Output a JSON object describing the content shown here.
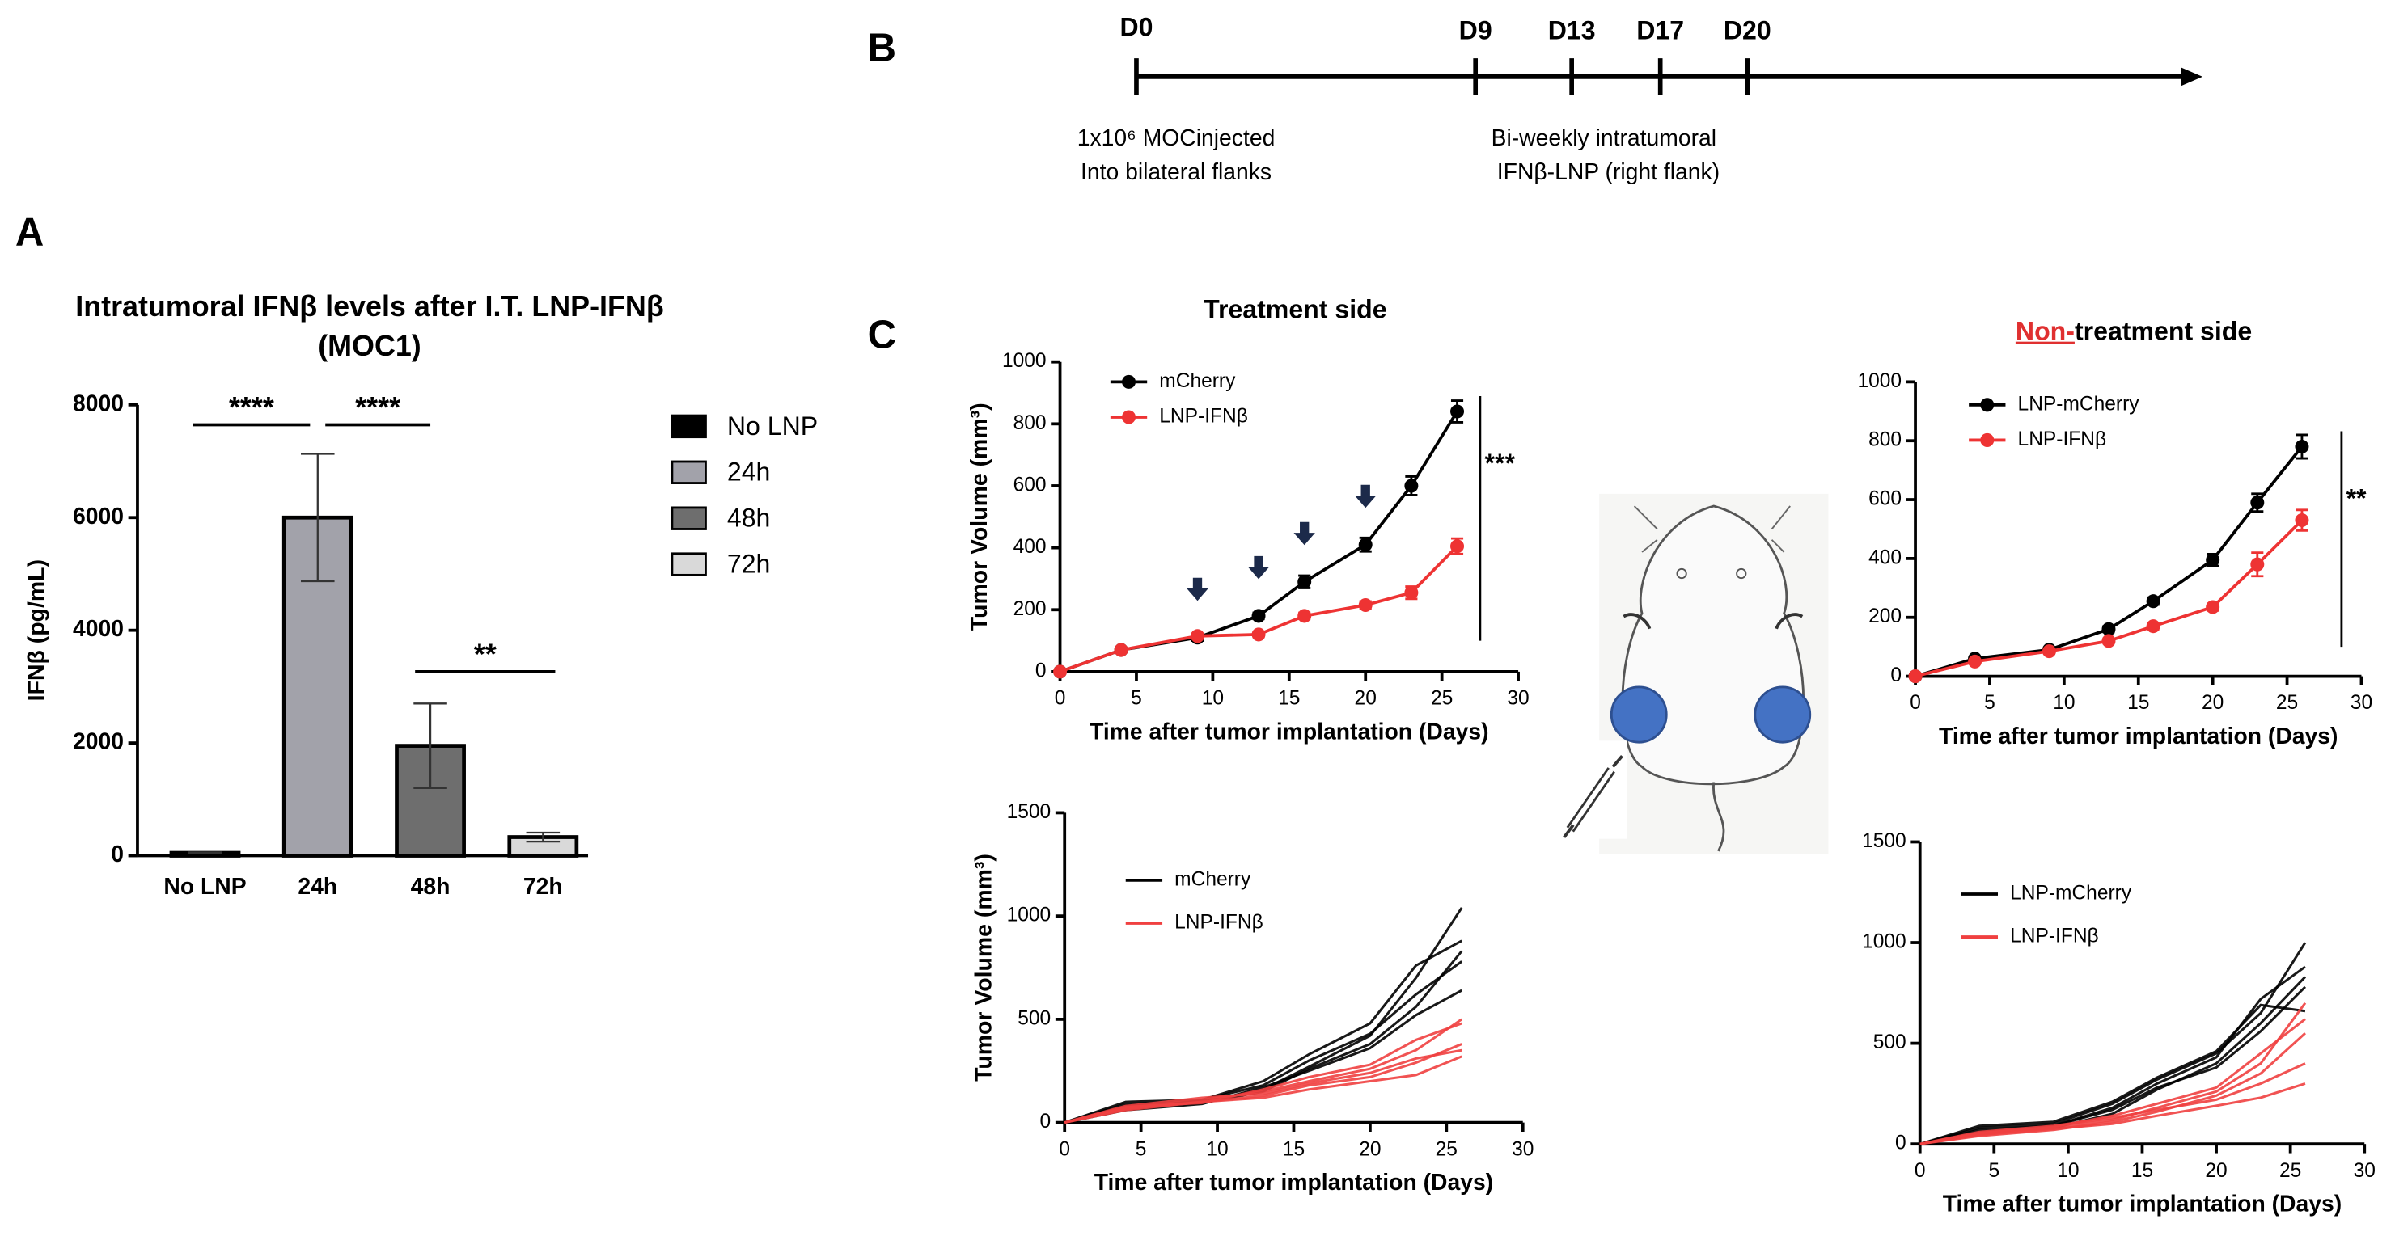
{
  "panel_labels": [
    "A",
    "B",
    "C"
  ],
  "timeline": {
    "days": [
      "D0",
      "D9",
      "D13",
      "D17",
      "D20"
    ],
    "note_left": [
      "1x10⁶ MOCinjected",
      "Into bilateral  flanks"
    ],
    "note_right": [
      "Bi-weekly  intratumoral",
      "IFNβ-LNP (right flank)"
    ]
  },
  "chart_data": [
    {
      "type": "bar",
      "title": "Intratumoral  IFNβ levels after I.T. LNP-IFNβ",
      "subtitle": "(MOC1)",
      "ylabel": "IFNβ  (pg/mL)",
      "categories": [
        "No LNP",
        "24h",
        "48h",
        "72h"
      ],
      "values": [
        50,
        6000,
        1950,
        330
      ],
      "errors": [
        10,
        1130,
        750,
        80
      ],
      "colors": [
        "#000000",
        "#a2a2aa",
        "#6e6e6e",
        "#d9d9d9"
      ],
      "ylim": [
        0,
        8000
      ],
      "yticks": [
        0,
        2000,
        4000,
        6000,
        8000
      ],
      "annotations": [
        "****",
        "****",
        "**"
      ],
      "legend": "right"
    },
    {
      "type": "line",
      "title": "Treatment side",
      "xlabel": "Time after tumor implantation (Days)",
      "ylabel": "Tumor Volume (mm³)",
      "x": [
        0,
        4,
        9,
        13,
        16,
        20,
        23,
        26
      ],
      "series": [
        {
          "name": "mCherry",
          "color": "#000000",
          "values": [
            0,
            70,
            110,
            180,
            290,
            410,
            600,
            840
          ],
          "errors": [
            0,
            8,
            10,
            10,
            20,
            22,
            30,
            35
          ]
        },
        {
          "name": "LNP-IFNβ",
          "color": "#ee3333",
          "values": [
            0,
            70,
            115,
            120,
            180,
            215,
            255,
            405
          ],
          "errors": [
            0,
            8,
            8,
            8,
            10,
            12,
            20,
            25
          ]
        }
      ],
      "xlim": [
        0,
        30
      ],
      "xticks": [
        0,
        5,
        10,
        15,
        20,
        25,
        30
      ],
      "ylim": [
        0,
        1000
      ],
      "yticks": [
        0,
        200,
        400,
        600,
        800,
        1000
      ],
      "annotation": "***"
    },
    {
      "type": "line",
      "title": [
        "Non-",
        "treatment side"
      ],
      "xlabel": "Time after tumor implantation (Days)",
      "x": [
        0,
        4,
        9,
        13,
        16,
        20,
        23,
        26
      ],
      "series": [
        {
          "name": "LNP-mCherry",
          "color": "#000000",
          "values": [
            0,
            60,
            90,
            160,
            255,
            395,
            590,
            780
          ],
          "errors": [
            0,
            6,
            8,
            10,
            12,
            20,
            30,
            40
          ]
        },
        {
          "name": "LNP-IFNβ",
          "color": "#ee3333",
          "values": [
            0,
            50,
            85,
            120,
            170,
            235,
            380,
            530
          ],
          "errors": [
            0,
            6,
            8,
            8,
            10,
            12,
            40,
            35
          ]
        }
      ],
      "xlim": [
        0,
        30
      ],
      "xticks": [
        0,
        5,
        10,
        15,
        20,
        25,
        30
      ],
      "ylim": [
        0,
        1000
      ],
      "yticks": [
        0,
        200,
        400,
        600,
        800,
        1000
      ],
      "annotation": "**"
    },
    {
      "type": "line",
      "xlabel": "Time after tumor implantation (Days)",
      "ylabel": "Tumor Volume (mm³)",
      "x": [
        0,
        4,
        9,
        13,
        16,
        20,
        23,
        26
      ],
      "series": [
        {
          "name": "mCherry",
          "color": "#000000",
          "values": [
            [
              0,
              90,
              100,
              160,
              270,
              420,
              700,
              1040
            ],
            [
              0,
              80,
              110,
              200,
              330,
              480,
              760,
              880
            ],
            [
              0,
              70,
              95,
              150,
              260,
              380,
              560,
              830
            ],
            [
              0,
              100,
              110,
              180,
              300,
              430,
              620,
              780
            ],
            [
              0,
              60,
              90,
              170,
              250,
              360,
              520,
              640
            ]
          ]
        },
        {
          "name": "LNP-IFNβ",
          "color": "#f04040",
          "values": [
            [
              0,
              70,
              110,
              150,
              200,
              260,
              350,
              500
            ],
            [
              0,
              60,
              100,
              130,
              180,
              220,
              290,
              380
            ],
            [
              0,
              80,
              120,
              140,
              190,
              240,
              310,
              350
            ],
            [
              0,
              65,
              100,
              120,
              160,
              200,
              230,
              320
            ],
            [
              0,
              75,
              95,
              160,
              220,
              280,
              400,
              480
            ]
          ]
        }
      ],
      "xlim": [
        0,
        30
      ],
      "xticks": [
        0,
        5,
        10,
        15,
        20,
        25,
        30
      ],
      "ylim": [
        0,
        1500
      ],
      "yticks": [
        0,
        500,
        1000,
        1500
      ]
    },
    {
      "type": "line",
      "xlabel": "Time after tumor implantation (Days)",
      "x": [
        0,
        4,
        9,
        13,
        16,
        20,
        23,
        26
      ],
      "series": [
        {
          "name": "LNP-mCherry",
          "color": "#000000",
          "values": [
            [
              0,
              80,
              100,
              200,
              320,
              450,
              650,
              1000
            ],
            [
              0,
              70,
              90,
              180,
              300,
              430,
              720,
              880
            ],
            [
              0,
              60,
              80,
              150,
              270,
              400,
              600,
              830
            ],
            [
              0,
              90,
              110,
              210,
              330,
              460,
              690,
              660
            ],
            [
              0,
              50,
              90,
              170,
              280,
              380,
              560,
              780
            ]
          ]
        },
        {
          "name": "LNP-IFNβ",
          "color": "#f04040",
          "values": [
            [
              0,
              50,
              80,
              120,
              180,
              260,
              400,
              700
            ],
            [
              0,
              40,
              70,
              110,
              160,
              240,
              350,
              550
            ],
            [
              0,
              60,
              90,
              130,
              170,
              220,
              300,
              400
            ],
            [
              0,
              45,
              75,
              100,
              140,
              190,
              230,
              300
            ],
            [
              0,
              55,
              85,
              140,
              200,
              280,
              450,
              620
            ]
          ]
        }
      ],
      "xlim": [
        0,
        30
      ],
      "xticks": [
        0,
        5,
        10,
        15,
        20,
        25,
        30
      ],
      "ylim": [
        0,
        1500
      ],
      "yticks": [
        0,
        500,
        1000,
        1500
      ]
    }
  ]
}
